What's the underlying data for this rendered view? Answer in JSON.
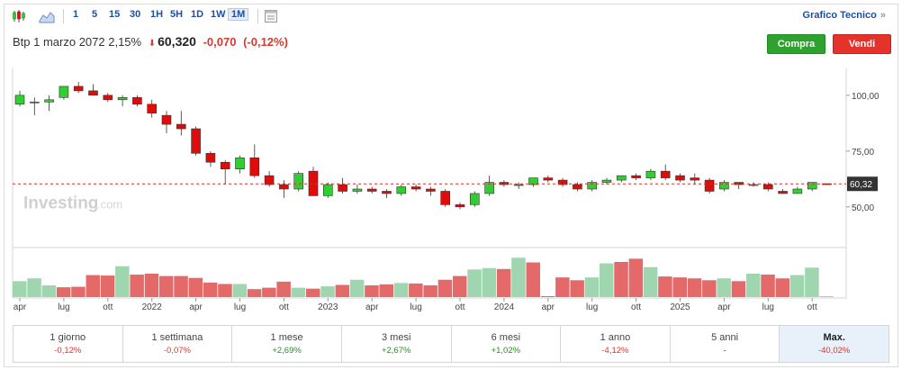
{
  "toolbar": {
    "icons": [
      "candlestick-icon",
      "area-chart-icon"
    ],
    "periods": [
      "1",
      "5",
      "15",
      "30",
      "1H",
      "5H",
      "1D",
      "1W",
      "1M"
    ],
    "active_period": "1M",
    "settings_icon": "chart-settings-icon",
    "technical_link": "Grafico Tecnico",
    "technical_arrow": "»"
  },
  "header": {
    "instrument": "Btp 1 marzo 2072 2,15%",
    "direction_icon": "down-arrow-icon",
    "direction_arrow": "⬇",
    "price": "60,320",
    "change": "-0,070",
    "change_pct": "(-0,12%)"
  },
  "buttons": {
    "buy": "Compra",
    "sell": "Vendi"
  },
  "colors": {
    "up": "#32cd32",
    "down": "#e00b0b",
    "vol_up": "#9fd6b0",
    "vol_down": "#e46a6a",
    "price_line": "#c0392b",
    "price_badge": "#333333"
  },
  "watermark": {
    "brand": "Investing",
    "suffix": ".com"
  },
  "chart_data": {
    "type": "candlestick",
    "interval": "1M",
    "y_ticks": [
      "100,00",
      "75,00",
      "50,00"
    ],
    "y_tick_values": [
      100,
      75,
      50
    ],
    "ylim": [
      33,
      108
    ],
    "last_price": 60.32,
    "last_price_label": "60,32",
    "x_ticks": [
      "apr",
      "lug",
      "ott",
      "2022",
      "apr",
      "lug",
      "ott",
      "2023",
      "apr",
      "lug",
      "ott",
      "2024",
      "apr",
      "lug",
      "ott",
      "2025",
      "apr",
      "lug",
      "ott"
    ],
    "x_tick_months": [
      0,
      3,
      6,
      9,
      12,
      15,
      18,
      21,
      24,
      27,
      30,
      33,
      36,
      39,
      42,
      45,
      48,
      51,
      54
    ],
    "candles": [
      {
        "m": 0,
        "o": 96,
        "h": 102,
        "l": 95,
        "c": 100
      },
      {
        "m": 1,
        "o": 97,
        "h": 99,
        "l": 91,
        "c": 97
      },
      {
        "m": 2,
        "o": 97,
        "h": 100,
        "l": 93,
        "c": 98
      },
      {
        "m": 3,
        "o": 99,
        "h": 104,
        "l": 98,
        "c": 104
      },
      {
        "m": 4,
        "o": 104,
        "h": 106,
        "l": 101,
        "c": 102
      },
      {
        "m": 5,
        "o": 102,
        "h": 105,
        "l": 100,
        "c": 100
      },
      {
        "m": 6,
        "o": 100,
        "h": 101,
        "l": 97,
        "c": 98
      },
      {
        "m": 7,
        "o": 98,
        "h": 100,
        "l": 95,
        "c": 99
      },
      {
        "m": 8,
        "o": 99,
        "h": 100,
        "l": 95,
        "c": 96
      },
      {
        "m": 9,
        "o": 96,
        "h": 98,
        "l": 90,
        "c": 92
      },
      {
        "m": 10,
        "o": 91,
        "h": 93,
        "l": 83,
        "c": 87
      },
      {
        "m": 11,
        "o": 87,
        "h": 93,
        "l": 82,
        "c": 85
      },
      {
        "m": 12,
        "o": 85,
        "h": 86,
        "l": 73,
        "c": 74
      },
      {
        "m": 13,
        "o": 74,
        "h": 75,
        "l": 68,
        "c": 70
      },
      {
        "m": 14,
        "o": 70,
        "h": 71,
        "l": 60,
        "c": 67
      },
      {
        "m": 15,
        "o": 67,
        "h": 73,
        "l": 65,
        "c": 72
      },
      {
        "m": 16,
        "o": 72,
        "h": 78,
        "l": 63,
        "c": 64
      },
      {
        "m": 17,
        "o": 64,
        "h": 66,
        "l": 59,
        "c": 60
      },
      {
        "m": 18,
        "o": 60,
        "h": 62,
        "l": 54,
        "c": 58
      },
      {
        "m": 19,
        "o": 58,
        "h": 66,
        "l": 57,
        "c": 65
      },
      {
        "m": 20,
        "o": 66,
        "h": 68,
        "l": 55,
        "c": 55
      },
      {
        "m": 21,
        "o": 55,
        "h": 61,
        "l": 54,
        "c": 60
      },
      {
        "m": 22,
        "o": 60,
        "h": 63,
        "l": 56,
        "c": 57
      },
      {
        "m": 23,
        "o": 57,
        "h": 60,
        "l": 56,
        "c": 58
      },
      {
        "m": 24,
        "o": 58,
        "h": 59,
        "l": 56,
        "c": 57
      },
      {
        "m": 25,
        "o": 57,
        "h": 58,
        "l": 54,
        "c": 56
      },
      {
        "m": 26,
        "o": 56,
        "h": 60,
        "l": 55,
        "c": 59
      },
      {
        "m": 27,
        "o": 59,
        "h": 60,
        "l": 57,
        "c": 58
      },
      {
        "m": 28,
        "o": 58,
        "h": 59,
        "l": 55,
        "c": 57
      },
      {
        "m": 29,
        "o": 57,
        "h": 58,
        "l": 50,
        "c": 51
      },
      {
        "m": 30,
        "o": 51,
        "h": 52,
        "l": 49,
        "c": 50
      },
      {
        "m": 31,
        "o": 51,
        "h": 57,
        "l": 50,
        "c": 56
      },
      {
        "m": 32,
        "o": 56,
        "h": 64,
        "l": 55,
        "c": 61
      },
      {
        "m": 33,
        "o": 61,
        "h": 62,
        "l": 59,
        "c": 60
      },
      {
        "m": 34,
        "o": 60,
        "h": 61,
        "l": 58,
        "c": 60
      },
      {
        "m": 35,
        "o": 60,
        "h": 63,
        "l": 59,
        "c": 63
      },
      {
        "m": 36,
        "o": 63,
        "h": 64,
        "l": 61,
        "c": 62
      },
      {
        "m": 37,
        "o": 62,
        "h": 63,
        "l": 59,
        "c": 60
      },
      {
        "m": 38,
        "o": 60,
        "h": 61,
        "l": 57,
        "c": 58
      },
      {
        "m": 39,
        "o": 58,
        "h": 62,
        "l": 57,
        "c": 61
      },
      {
        "m": 40,
        "o": 61,
        "h": 63,
        "l": 60,
        "c": 62
      },
      {
        "m": 41,
        "o": 62,
        "h": 64,
        "l": 61,
        "c": 64
      },
      {
        "m": 42,
        "o": 64,
        "h": 65,
        "l": 62,
        "c": 63
      },
      {
        "m": 43,
        "o": 63,
        "h": 67,
        "l": 62,
        "c": 66
      },
      {
        "m": 44,
        "o": 66,
        "h": 69,
        "l": 62,
        "c": 63
      },
      {
        "m": 45,
        "o": 64,
        "h": 65,
        "l": 61,
        "c": 62
      },
      {
        "m": 46,
        "o": 63,
        "h": 65,
        "l": 60,
        "c": 62
      },
      {
        "m": 47,
        "o": 62,
        "h": 63,
        "l": 56,
        "c": 57
      },
      {
        "m": 48,
        "o": 58,
        "h": 62,
        "l": 57,
        "c": 61
      },
      {
        "m": 49,
        "o": 61,
        "h": 61,
        "l": 58,
        "c": 60
      },
      {
        "m": 50,
        "o": 60,
        "h": 61,
        "l": 59,
        "c": 60
      },
      {
        "m": 51,
        "o": 60,
        "h": 61,
        "l": 57,
        "c": 58
      },
      {
        "m": 52,
        "o": 57,
        "h": 58,
        "l": 56,
        "c": 56
      },
      {
        "m": 53,
        "o": 56,
        "h": 59,
        "l": 56,
        "c": 58
      },
      {
        "m": 54,
        "o": 58,
        "h": 61,
        "l": 57,
        "c": 61
      },
      {
        "m": 55,
        "o": 60.39,
        "h": 60.4,
        "l": 60.3,
        "c": 60.32
      }
    ],
    "volume": [
      0.34,
      0.4,
      0.25,
      0.21,
      0.22,
      0.47,
      0.46,
      0.66,
      0.48,
      0.5,
      0.45,
      0.45,
      0.41,
      0.31,
      0.28,
      0.28,
      0.17,
      0.2,
      0.33,
      0.2,
      0.18,
      0.23,
      0.26,
      0.37,
      0.25,
      0.27,
      0.3,
      0.29,
      0.25,
      0.37,
      0.45,
      0.59,
      0.62,
      0.6,
      0.84,
      0.74,
      0.02,
      0.42,
      0.36,
      0.42,
      0.72,
      0.75,
      0.82,
      0.64,
      0.44,
      0.42,
      0.4,
      0.36,
      0.4,
      0.34,
      0.5,
      0.48,
      0.4,
      0.47,
      0.63,
      0.02
    ],
    "volume_up": [
      true,
      true,
      true,
      false,
      false,
      false,
      false,
      true,
      false,
      false,
      false,
      false,
      false,
      false,
      false,
      true,
      false,
      false,
      false,
      true,
      false,
      true,
      false,
      true,
      false,
      false,
      true,
      false,
      false,
      false,
      false,
      true,
      true,
      false,
      true,
      false,
      false,
      false,
      false,
      true,
      true,
      false,
      false,
      true,
      false,
      false,
      false,
      false,
      true,
      false,
      true,
      false,
      false,
      true,
      true,
      true
    ]
  },
  "performance": [
    {
      "label": "1 giorno",
      "value": "-0,12%",
      "sign": "neg"
    },
    {
      "label": "1 settimana",
      "value": "-0,07%",
      "sign": "neg"
    },
    {
      "label": "1 mese",
      "value": "+2,69%",
      "sign": "pos"
    },
    {
      "label": "3 mesi",
      "value": "+2,67%",
      "sign": "pos"
    },
    {
      "label": "6 mesi",
      "value": "+1,02%",
      "sign": "pos"
    },
    {
      "label": "1 anno",
      "value": "-4,12%",
      "sign": "neg"
    },
    {
      "label": "5 anni",
      "value": "-",
      "sign": "neu"
    },
    {
      "label": "Max.",
      "value": "-40,02%",
      "sign": "neg",
      "active": true
    }
  ]
}
